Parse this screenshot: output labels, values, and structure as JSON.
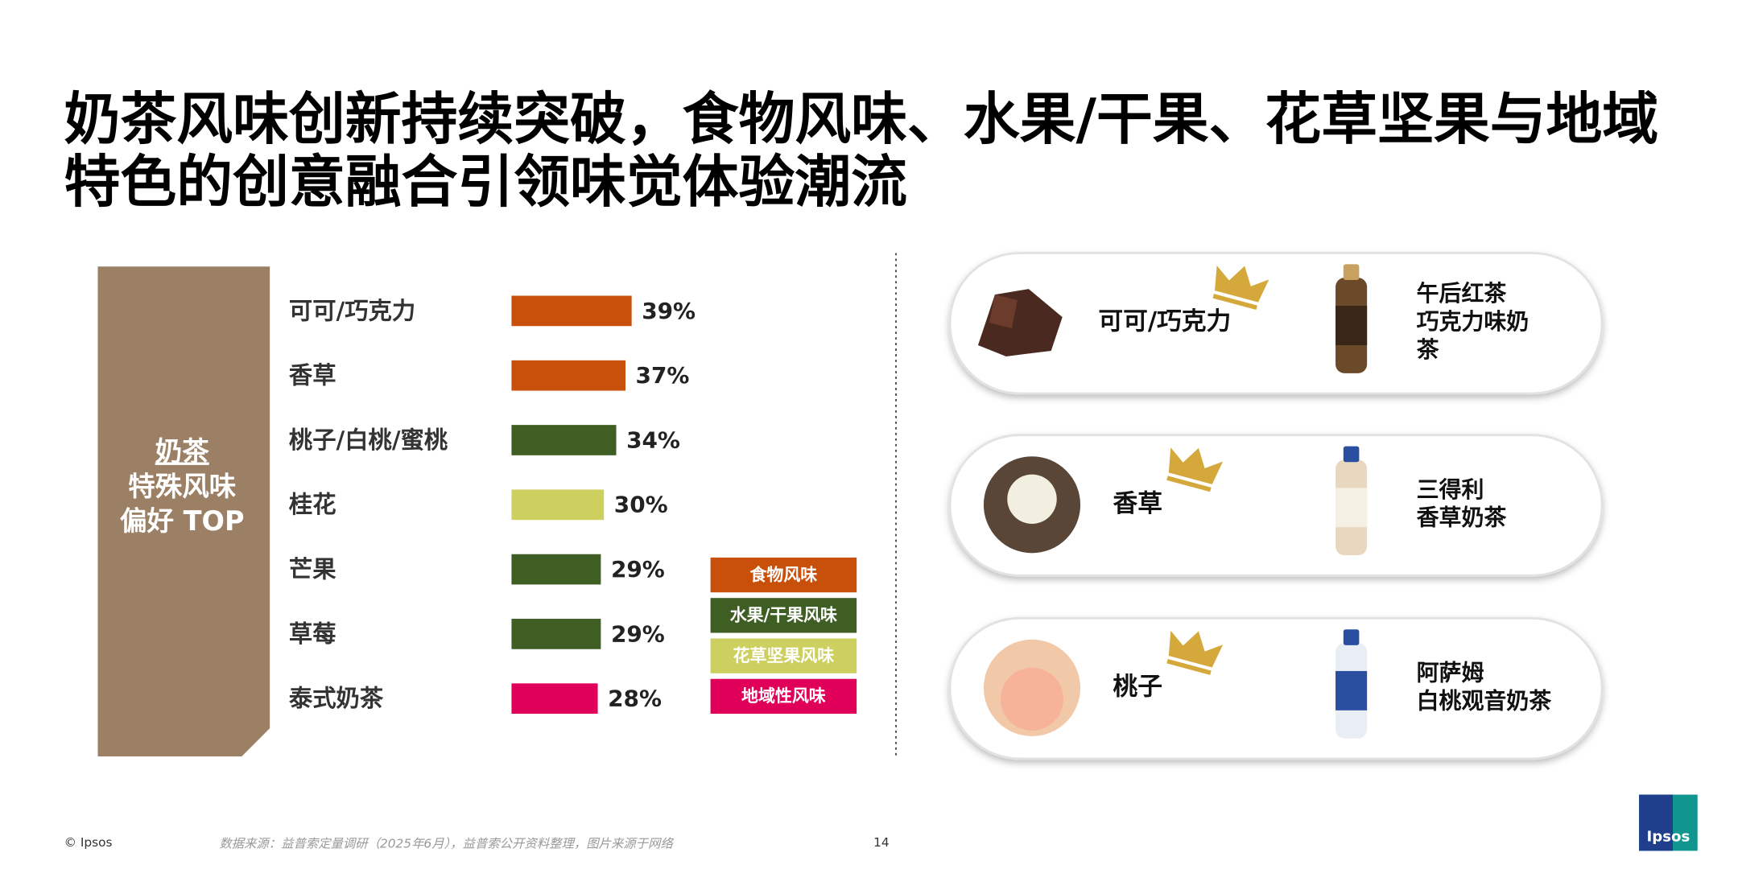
{
  "title": "奶茶风味创新持续突破，食物风味、水果/干果、花草坚果与地域特色的创意融合引领味觉体验潮流",
  "chart_data": {
    "type": "bar",
    "orientation": "horizontal",
    "title_lines": [
      "奶茶",
      "特殊风味",
      "偏好 TOP"
    ],
    "categories": [
      "可可/巧克力",
      "香草",
      "桃子/白桃/蜜桃",
      "桂花",
      "芒果",
      "草莓",
      "泰式奶茶"
    ],
    "values": [
      39,
      37,
      34,
      30,
      29,
      29,
      28
    ],
    "value_labels": [
      "39%",
      "37%",
      "34%",
      "30%",
      "29%",
      "29%",
      "28%"
    ],
    "colors": [
      "#c8500a",
      "#c8500a",
      "#3f5e23",
      "#cdd05f",
      "#3f5e23",
      "#3f5e23",
      "#e0005a"
    ],
    "legend": [
      {
        "name": "食物风味",
        "color": "#c8500a"
      },
      {
        "name": "水果/干果风味",
        "color": "#3f5e23"
      },
      {
        "name": "花草坚果风味",
        "color": "#cdd05f"
      },
      {
        "name": "地域性风味",
        "color": "#e0005a"
      }
    ]
  },
  "cards": [
    {
      "flavor": "可可/巧克力",
      "product_lines": [
        "午后红茶",
        "巧克力味奶",
        "茶"
      ]
    },
    {
      "flavor": "香草",
      "product_lines": [
        "三得利",
        "香草奶茶"
      ]
    },
    {
      "flavor": "桃子",
      "product_lines": [
        "阿萨姆",
        "白桃观音奶茶"
      ]
    }
  ],
  "footer": {
    "copyright": "© Ipsos",
    "source": "数据来源：益普索定量调研（2025年6月），益普索公开资料整理，图片来源于网络",
    "page": "14",
    "logo": "Ipsos"
  }
}
